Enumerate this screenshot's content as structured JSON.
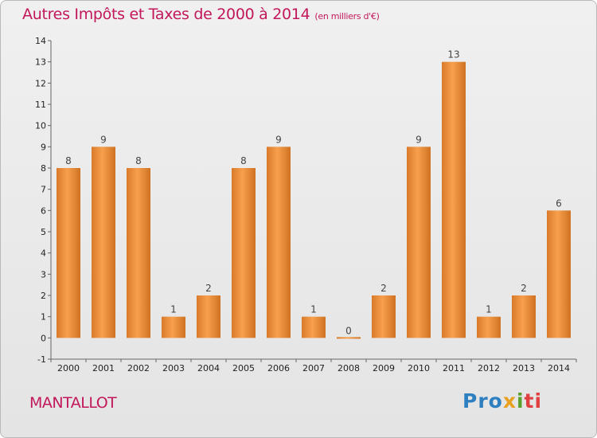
{
  "title": "Autres Impôts et Taxes de 2000 à 2014",
  "title_unit": "(en milliers d'€)",
  "town": "MANTALLOT",
  "logo": {
    "p1": "Pro",
    "p2": "x",
    "p3": "i",
    "p4": "ti"
  },
  "colors": {
    "bar_light": "#f7a04d",
    "bar_dark": "#cf7222",
    "title": "#c2185b"
  },
  "chart_data": {
    "type": "bar",
    "title": "Autres Impôts et Taxes de 2000 à 2014",
    "subtitle": "(en milliers d'€)",
    "categories": [
      "2000",
      "2001",
      "2002",
      "2003",
      "2004",
      "2005",
      "2006",
      "2007",
      "2008",
      "2009",
      "2010",
      "2011",
      "2012",
      "2013",
      "2014"
    ],
    "values": [
      8,
      9,
      8,
      1,
      2,
      8,
      9,
      1,
      0,
      2,
      9,
      13,
      1,
      2,
      6
    ],
    "ylim": [
      -1,
      14
    ],
    "yticks": [
      -1,
      0,
      1,
      2,
      3,
      4,
      5,
      6,
      7,
      8,
      9,
      10,
      11,
      12,
      13,
      14
    ],
    "grid": false,
    "legend": "none"
  }
}
